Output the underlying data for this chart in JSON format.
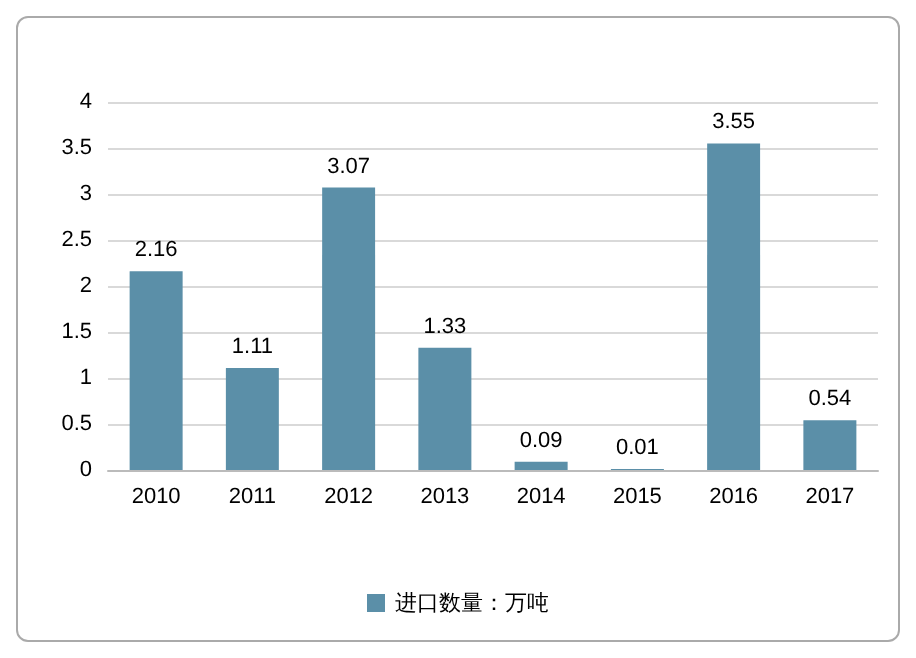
{
  "chart_data": {
    "type": "bar",
    "categories": [
      "2010",
      "2011",
      "2012",
      "2013",
      "2014",
      "2015",
      "2016",
      "2017"
    ],
    "series": [
      {
        "name": "进口数量：万吨",
        "color": "#5b8fa8",
        "values": [
          2.16,
          1.11,
          3.07,
          1.33,
          0.09,
          0.01,
          3.55,
          0.54
        ]
      }
    ],
    "ylim": [
      0,
      4
    ],
    "yticks": [
      0,
      0.5,
      1,
      1.5,
      2,
      2.5,
      3,
      3.5,
      4
    ],
    "grid": "y",
    "legend": "bottom",
    "data_labels": true
  }
}
